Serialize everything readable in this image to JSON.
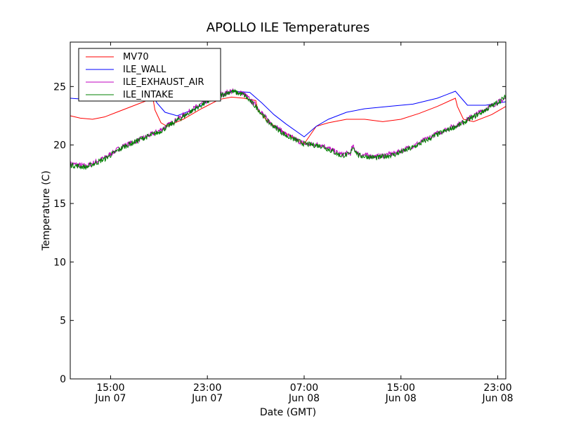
{
  "chart_data": {
    "type": "line",
    "title": "APOLLO ILE Temperatures",
    "xlabel": "Date (GMT)",
    "ylabel": "Temperature (C)",
    "xlim": [
      "2011-06-07T11:40",
      "2011-06-08T23:40"
    ],
    "ylim": [
      0,
      28.8
    ],
    "grid": false,
    "legend_position": "top-left",
    "y_ticks": [
      0,
      5,
      10,
      15,
      20,
      25
    ],
    "x_ticks": [
      {
        "t": "2011-06-07T15:00",
        "label_time": "15:00",
        "label_date": "Jun 07"
      },
      {
        "t": "2011-06-07T23:00",
        "label_time": "23:00",
        "label_date": "Jun 07"
      },
      {
        "t": "2011-06-08T07:00",
        "label_time": "07:00",
        "label_date": "Jun 08"
      },
      {
        "t": "2011-06-08T15:00",
        "label_time": "15:00",
        "label_date": "Jun 08"
      },
      {
        "t": "2011-06-08T23:00",
        "label_time": "23:00",
        "label_date": "Jun 08"
      }
    ],
    "series": [
      {
        "name": "MV70",
        "color": "#ff0000",
        "points": [
          [
            "2011-06-07T11:40",
            22.5
          ],
          [
            "2011-06-07T12:30",
            22.3
          ],
          [
            "2011-06-07T13:30",
            22.2
          ],
          [
            "2011-06-07T14:30",
            22.4
          ],
          [
            "2011-06-07T15:30",
            22.8
          ],
          [
            "2011-06-07T17:00",
            23.4
          ],
          [
            "2011-06-07T18:30",
            24.0
          ],
          [
            "2011-06-07T18:40",
            23.0
          ],
          [
            "2011-06-07T19:10",
            21.9
          ],
          [
            "2011-06-07T19:40",
            21.6
          ],
          [
            "2011-06-07T21:00",
            22.2
          ],
          [
            "2011-06-07T22:30",
            23.1
          ],
          [
            "2011-06-08T00:00",
            23.9
          ],
          [
            "2011-06-08T01:00",
            24.1
          ],
          [
            "2011-06-08T02:00",
            24.0
          ],
          [
            "2011-06-08T03:00",
            23.8
          ],
          [
            "2011-06-08T03:10",
            23.0
          ],
          [
            "2011-06-08T04:00",
            22.0
          ],
          [
            "2011-06-08T05:30",
            21.0
          ],
          [
            "2011-06-08T07:00",
            20.1
          ],
          [
            "2011-06-08T08:00",
            21.6
          ],
          [
            "2011-06-08T09:00",
            21.9
          ],
          [
            "2011-06-08T10:30",
            22.2
          ],
          [
            "2011-06-08T12:00",
            22.2
          ],
          [
            "2011-06-08T13:30",
            22.0
          ],
          [
            "2011-06-08T15:00",
            22.2
          ],
          [
            "2011-06-08T16:30",
            22.7
          ],
          [
            "2011-06-08T18:00",
            23.3
          ],
          [
            "2011-06-08T19:30",
            24.0
          ],
          [
            "2011-06-08T19:40",
            23.3
          ],
          [
            "2011-06-08T20:10",
            22.2
          ],
          [
            "2011-06-08T21:00",
            22.0
          ],
          [
            "2011-06-08T22:30",
            22.6
          ],
          [
            "2011-06-08T23:40",
            23.3
          ]
        ]
      },
      {
        "name": "ILE_WALL",
        "color": "#0000ff",
        "points": [
          [
            "2011-06-07T11:40",
            24.0
          ],
          [
            "2011-06-07T13:00",
            23.9
          ],
          [
            "2011-06-07T15:00",
            23.8
          ],
          [
            "2011-06-07T17:00",
            24.0
          ],
          [
            "2011-06-07T18:30",
            24.2
          ],
          [
            "2011-06-07T18:50",
            23.6
          ],
          [
            "2011-06-07T19:30",
            22.8
          ],
          [
            "2011-06-07T20:30",
            22.5
          ],
          [
            "2011-06-07T22:00",
            23.1
          ],
          [
            "2011-06-07T23:30",
            24.0
          ],
          [
            "2011-06-08T01:00",
            24.6
          ],
          [
            "2011-06-08T02:30",
            24.5
          ],
          [
            "2011-06-08T03:30",
            23.6
          ],
          [
            "2011-06-08T04:30",
            22.6
          ],
          [
            "2011-06-08T05:30",
            21.8
          ],
          [
            "2011-06-08T07:00",
            20.7
          ],
          [
            "2011-06-08T08:00",
            21.6
          ],
          [
            "2011-06-08T09:00",
            22.2
          ],
          [
            "2011-06-08T10:30",
            22.8
          ],
          [
            "2011-06-08T12:00",
            23.1
          ],
          [
            "2011-06-08T14:00",
            23.3
          ],
          [
            "2011-06-08T16:00",
            23.5
          ],
          [
            "2011-06-08T18:00",
            24.0
          ],
          [
            "2011-06-08T19:30",
            24.6
          ],
          [
            "2011-06-08T20:00",
            24.0
          ],
          [
            "2011-06-08T20:30",
            23.4
          ],
          [
            "2011-06-08T22:00",
            23.4
          ],
          [
            "2011-06-08T23:40",
            23.7
          ]
        ]
      },
      {
        "name": "ILE_EXHAUST_AIR",
        "color": "#bf00bf",
        "points": [
          [
            "2011-06-07T11:40",
            18.4
          ],
          [
            "2011-06-07T13:00",
            18.2
          ],
          [
            "2011-06-07T14:30",
            18.9
          ],
          [
            "2011-06-07T16:00",
            19.9
          ],
          [
            "2011-06-07T17:30",
            20.5
          ],
          [
            "2011-06-07T19:00",
            21.2
          ],
          [
            "2011-06-07T20:30",
            22.2
          ],
          [
            "2011-06-07T22:00",
            23.2
          ],
          [
            "2011-06-07T23:30",
            24.1
          ],
          [
            "2011-06-08T01:00",
            24.6
          ],
          [
            "2011-06-08T02:00",
            24.4
          ],
          [
            "2011-06-08T03:10",
            23.2
          ],
          [
            "2011-06-08T04:00",
            22.1
          ],
          [
            "2011-06-08T05:30",
            20.9
          ],
          [
            "2011-06-08T07:00",
            20.1
          ],
          [
            "2011-06-08T08:30",
            20.0
          ],
          [
            "2011-06-08T10:00",
            19.2
          ],
          [
            "2011-06-08T10:50",
            19.3
          ],
          [
            "2011-06-08T11:00",
            19.9
          ],
          [
            "2011-06-08T11:30",
            19.2
          ],
          [
            "2011-06-08T13:00",
            19.0
          ],
          [
            "2011-06-08T14:30",
            19.3
          ],
          [
            "2011-06-08T16:00",
            19.9
          ],
          [
            "2011-06-08T18:00",
            21.0
          ],
          [
            "2011-06-08T20:00",
            21.9
          ],
          [
            "2011-06-08T22:00",
            23.1
          ],
          [
            "2011-06-08T23:40",
            24.0
          ]
        ]
      },
      {
        "name": "ILE_INTAKE",
        "color": "#008000",
        "points": [
          [
            "2011-06-07T11:40",
            18.3
          ],
          [
            "2011-06-07T13:00",
            18.1
          ],
          [
            "2011-06-07T14:30",
            18.8
          ],
          [
            "2011-06-07T16:00",
            19.8
          ],
          [
            "2011-06-07T17:30",
            20.5
          ],
          [
            "2011-06-07T19:00",
            21.1
          ],
          [
            "2011-06-07T20:30",
            22.1
          ],
          [
            "2011-06-07T22:00",
            23.1
          ],
          [
            "2011-06-07T23:30",
            24.0
          ],
          [
            "2011-06-08T01:00",
            24.6
          ],
          [
            "2011-06-08T02:00",
            24.3
          ],
          [
            "2011-06-08T03:10",
            23.1
          ],
          [
            "2011-06-08T04:00",
            22.0
          ],
          [
            "2011-06-08T05:30",
            20.8
          ],
          [
            "2011-06-08T07:00",
            20.1
          ],
          [
            "2011-06-08T08:30",
            19.9
          ],
          [
            "2011-06-08T10:00",
            19.1
          ],
          [
            "2011-06-08T10:50",
            19.2
          ],
          [
            "2011-06-08T11:00",
            19.9
          ],
          [
            "2011-06-08T11:30",
            19.1
          ],
          [
            "2011-06-08T13:00",
            18.9
          ],
          [
            "2011-06-08T14:30",
            19.2
          ],
          [
            "2011-06-08T16:00",
            19.8
          ],
          [
            "2011-06-08T18:00",
            20.9
          ],
          [
            "2011-06-08T20:00",
            21.8
          ],
          [
            "2011-06-08T22:00",
            23.0
          ],
          [
            "2011-06-08T23:40",
            24.1
          ]
        ]
      }
    ]
  }
}
